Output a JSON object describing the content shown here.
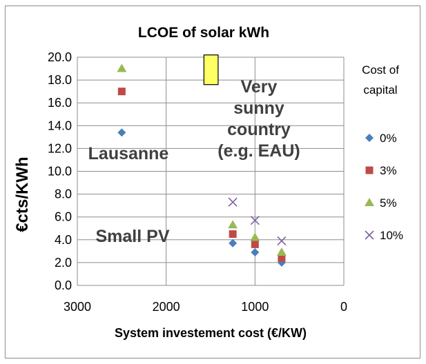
{
  "chart_data": {
    "type": "scatter",
    "title": "LCOE of solar  kWh",
    "xlabel": "System investement cost (€/KW)",
    "ylabel": "€cts/KWh",
    "xlim": [
      3000,
      0
    ],
    "ylim": [
      0,
      20
    ],
    "x_reversed": true,
    "xticks": [
      "3000",
      "2000",
      "1000",
      "0"
    ],
    "yticks": [
      "0.0",
      "2.0",
      "4.0",
      "6.0",
      "8.0",
      "10.0",
      "12.0",
      "14.0",
      "16.0",
      "18.0",
      "20.0"
    ],
    "grid": true,
    "legend": {
      "title_lines": [
        "Cost of",
        "capital"
      ],
      "position": "right"
    },
    "series": [
      {
        "name": "0%",
        "marker": "diamond",
        "color": "#4a7ebb",
        "points": [
          [
            2500,
            13.4
          ],
          [
            1250,
            3.7
          ],
          [
            1000,
            2.9
          ],
          [
            700,
            2.0
          ]
        ]
      },
      {
        "name": "3%",
        "marker": "square",
        "color": "#be4b48",
        "points": [
          [
            2500,
            17.0
          ],
          [
            1250,
            4.5
          ],
          [
            1000,
            3.6
          ],
          [
            700,
            2.4
          ]
        ]
      },
      {
        "name": "5%",
        "marker": "triangle",
        "color": "#98b954",
        "points": [
          [
            2500,
            19.0
          ],
          [
            1250,
            5.3
          ],
          [
            1000,
            4.2
          ],
          [
            700,
            2.9
          ]
        ]
      },
      {
        "name": "10%",
        "marker": "x",
        "color": "#7d60a0",
        "points": [
          [
            1250,
            7.3
          ],
          [
            1000,
            5.7
          ],
          [
            700,
            3.9
          ]
        ]
      }
    ],
    "highlight_box": {
      "x_range": [
        1575,
        1415
      ],
      "y_range": [
        17.6,
        20.2
      ],
      "color": "#ffff66"
    },
    "annotations": [
      {
        "id": "lausanne",
        "lines": [
          "Lausanne"
        ]
      },
      {
        "id": "very-sunny",
        "lines": [
          "Very",
          "sunny",
          "country",
          "(e.g. EAU)"
        ]
      },
      {
        "id": "small-pv",
        "lines": [
          "Small PV"
        ]
      }
    ]
  }
}
